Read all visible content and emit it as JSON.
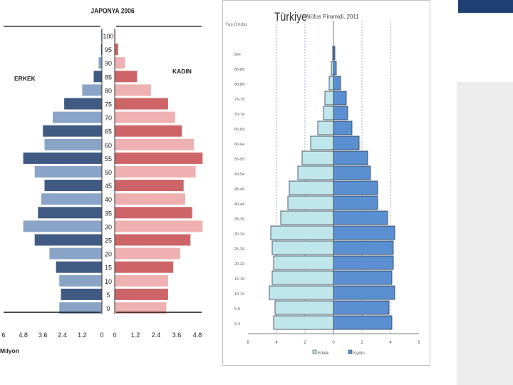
{
  "colors": {
    "japan_male_dark": "#415a84",
    "japan_male_light": "#8aa4c8",
    "japan_female_dark": "#cd6568",
    "japan_female_light": "#eeb0b0",
    "turkey_male": "#bfe6ea",
    "turkey_female": "#5a8fd2",
    "accent": "#1f3f73"
  },
  "chart_data": [
    {
      "type": "bar",
      "subtype": "population-pyramid",
      "title": "JAPONYA 2006",
      "male_label": "ERKEK",
      "female_label": "KADIN",
      "xlabel": "Milyon",
      "categories": [
        "100",
        "95",
        "90",
        "85",
        "80",
        "75",
        "70",
        "65",
        "60",
        "55",
        "50",
        "45",
        "40",
        "35",
        "30",
        "25",
        "20",
        "15",
        "10",
        "5",
        "0"
      ],
      "male_values": [
        0.05,
        0.05,
        0.2,
        0.5,
        1.2,
        2.3,
        3.0,
        3.6,
        3.5,
        4.8,
        4.1,
        3.5,
        3.7,
        3.9,
        4.8,
        4.1,
        3.2,
        2.8,
        2.6,
        2.5,
        2.6
      ],
      "female_values": [
        0.05,
        0.2,
        0.6,
        1.3,
        2.1,
        3.1,
        3.5,
        3.9,
        4.6,
        5.1,
        4.7,
        4.0,
        4.1,
        4.5,
        5.1,
        4.4,
        3.8,
        3.4,
        3.1,
        3.1,
        3.0
      ],
      "x_ticks_male": [
        "6",
        "4.8",
        "3.6",
        "2.4",
        "1.2",
        "0"
      ],
      "x_ticks_female": [
        "0",
        "1.2",
        "2.4",
        "3.6",
        "4.8"
      ],
      "xlim": [
        0,
        6
      ]
    },
    {
      "type": "bar",
      "subtype": "population-pyramid",
      "title": "Türkiye",
      "subtitle": "Nüfus Piramidi, 2011",
      "ylabel": "Yaş Grubu",
      "categories": [
        "90+",
        "85-89",
        "80-84",
        "75-79",
        "70-74",
        "65-69",
        "60-64",
        "55-59",
        "50-54",
        "45-49",
        "40-44",
        "35-39",
        "30-34",
        "25-29",
        "20-24",
        "15-19",
        "10-14",
        "5-9",
        "0-4"
      ],
      "male_values": [
        0.05,
        0.15,
        0.3,
        0.6,
        0.7,
        1.1,
        1.6,
        2.2,
        2.5,
        3.1,
        3.2,
        3.7,
        4.4,
        4.3,
        4.2,
        4.3,
        4.5,
        4.1,
        4.2
      ],
      "female_values": [
        0.1,
        0.2,
        0.5,
        0.9,
        1.0,
        1.3,
        1.8,
        2.4,
        2.6,
        3.1,
        3.1,
        3.8,
        4.3,
        4.2,
        4.2,
        4.1,
        4.3,
        3.9,
        4.1
      ],
      "x_ticks": [
        "6",
        "4",
        "2",
        "0",
        "2",
        "4",
        "6"
      ],
      "xlim": [
        -6,
        6
      ],
      "legend": [
        "Erkek",
        "Kadın"
      ],
      "legend_position": "bottom"
    }
  ]
}
